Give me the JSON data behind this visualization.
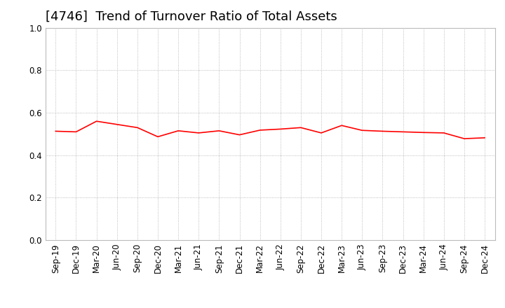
{
  "title": "[4746]  Trend of Turnover Ratio of Total Assets",
  "line_color": "#ff0000",
  "line_width": 1.2,
  "background_color": "#ffffff",
  "ylim": [
    0.0,
    1.0
  ],
  "yticks": [
    0.0,
    0.2,
    0.4,
    0.6,
    0.8,
    1.0
  ],
  "xlabels": [
    "Sep-19",
    "Dec-19",
    "Mar-20",
    "Jun-20",
    "Sep-20",
    "Dec-20",
    "Mar-21",
    "Jun-21",
    "Sep-21",
    "Dec-21",
    "Mar-22",
    "Jun-22",
    "Sep-22",
    "Dec-22",
    "Mar-23",
    "Jun-23",
    "Sep-23",
    "Dec-23",
    "Mar-24",
    "Jun-24",
    "Sep-24",
    "Dec-24"
  ],
  "values": [
    0.513,
    0.51,
    0.56,
    0.545,
    0.53,
    0.487,
    0.515,
    0.505,
    0.515,
    0.496,
    0.518,
    0.523,
    0.53,
    0.505,
    0.54,
    0.517,
    0.513,
    0.51,
    0.507,
    0.505,
    0.478,
    0.482
  ],
  "grid_color": "#aaaaaa",
  "title_fontsize": 13,
  "tick_fontsize": 8.5
}
